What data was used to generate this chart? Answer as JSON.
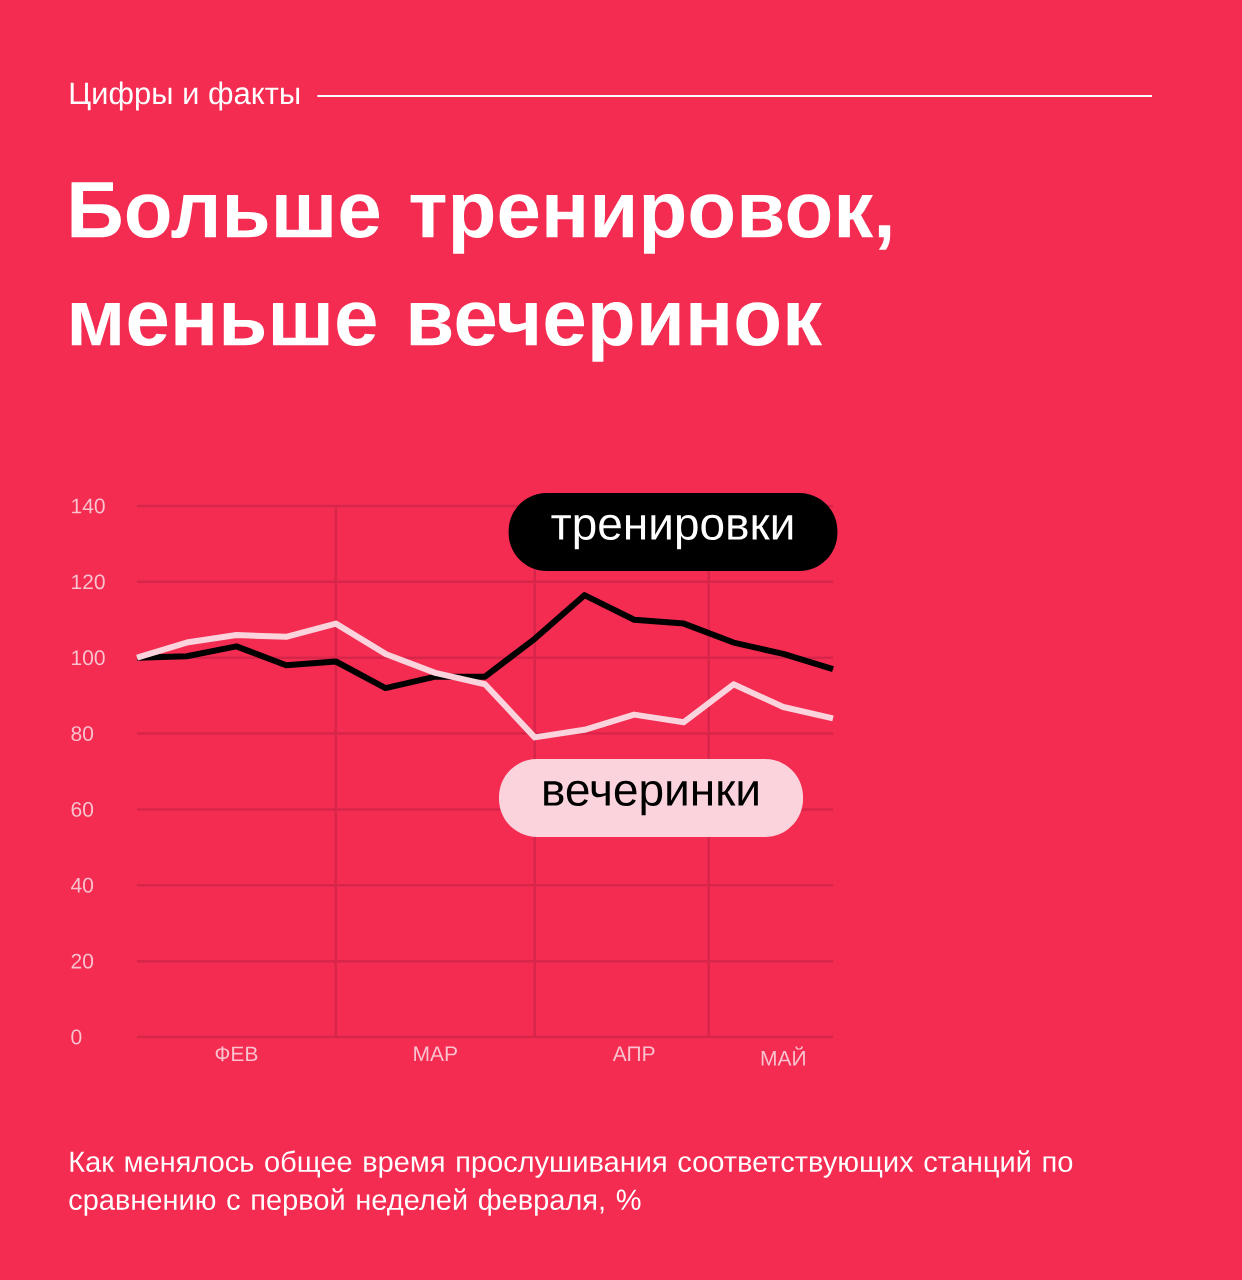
{
  "chart_data": {
    "type": "line",
    "subtitle": "Цифры и факты",
    "title": "Больше тренировок, меньше вечеринок",
    "categories": [
      null,
      null,
      "ФЕВ",
      null,
      null,
      null,
      "МАР",
      null,
      null,
      null,
      "АПР",
      null,
      null,
      "МАЙ",
      null
    ],
    "ylim": [
      0,
      140
    ],
    "yticks": [
      0,
      20,
      40,
      60,
      80,
      100,
      120,
      140
    ],
    "grid": true,
    "series": [
      {
        "name": "тренировки",
        "color": "#000000",
        "values": [
          100,
          100.4,
          103,
          98,
          99,
          92,
          95,
          95,
          105,
          116.5,
          110,
          109,
          104,
          101,
          97
        ]
      },
      {
        "name": "вечеринки",
        "color": "#fbd3dc",
        "values": [
          100,
          104,
          106,
          105.5,
          109,
          101,
          96,
          93,
          79,
          81,
          85,
          83,
          93,
          87,
          84
        ]
      }
    ],
    "annotations": [
      "Как менялось общее время прослушивания соответствующих станций по сравнению с первой неделей февраля, %"
    ]
  }
}
